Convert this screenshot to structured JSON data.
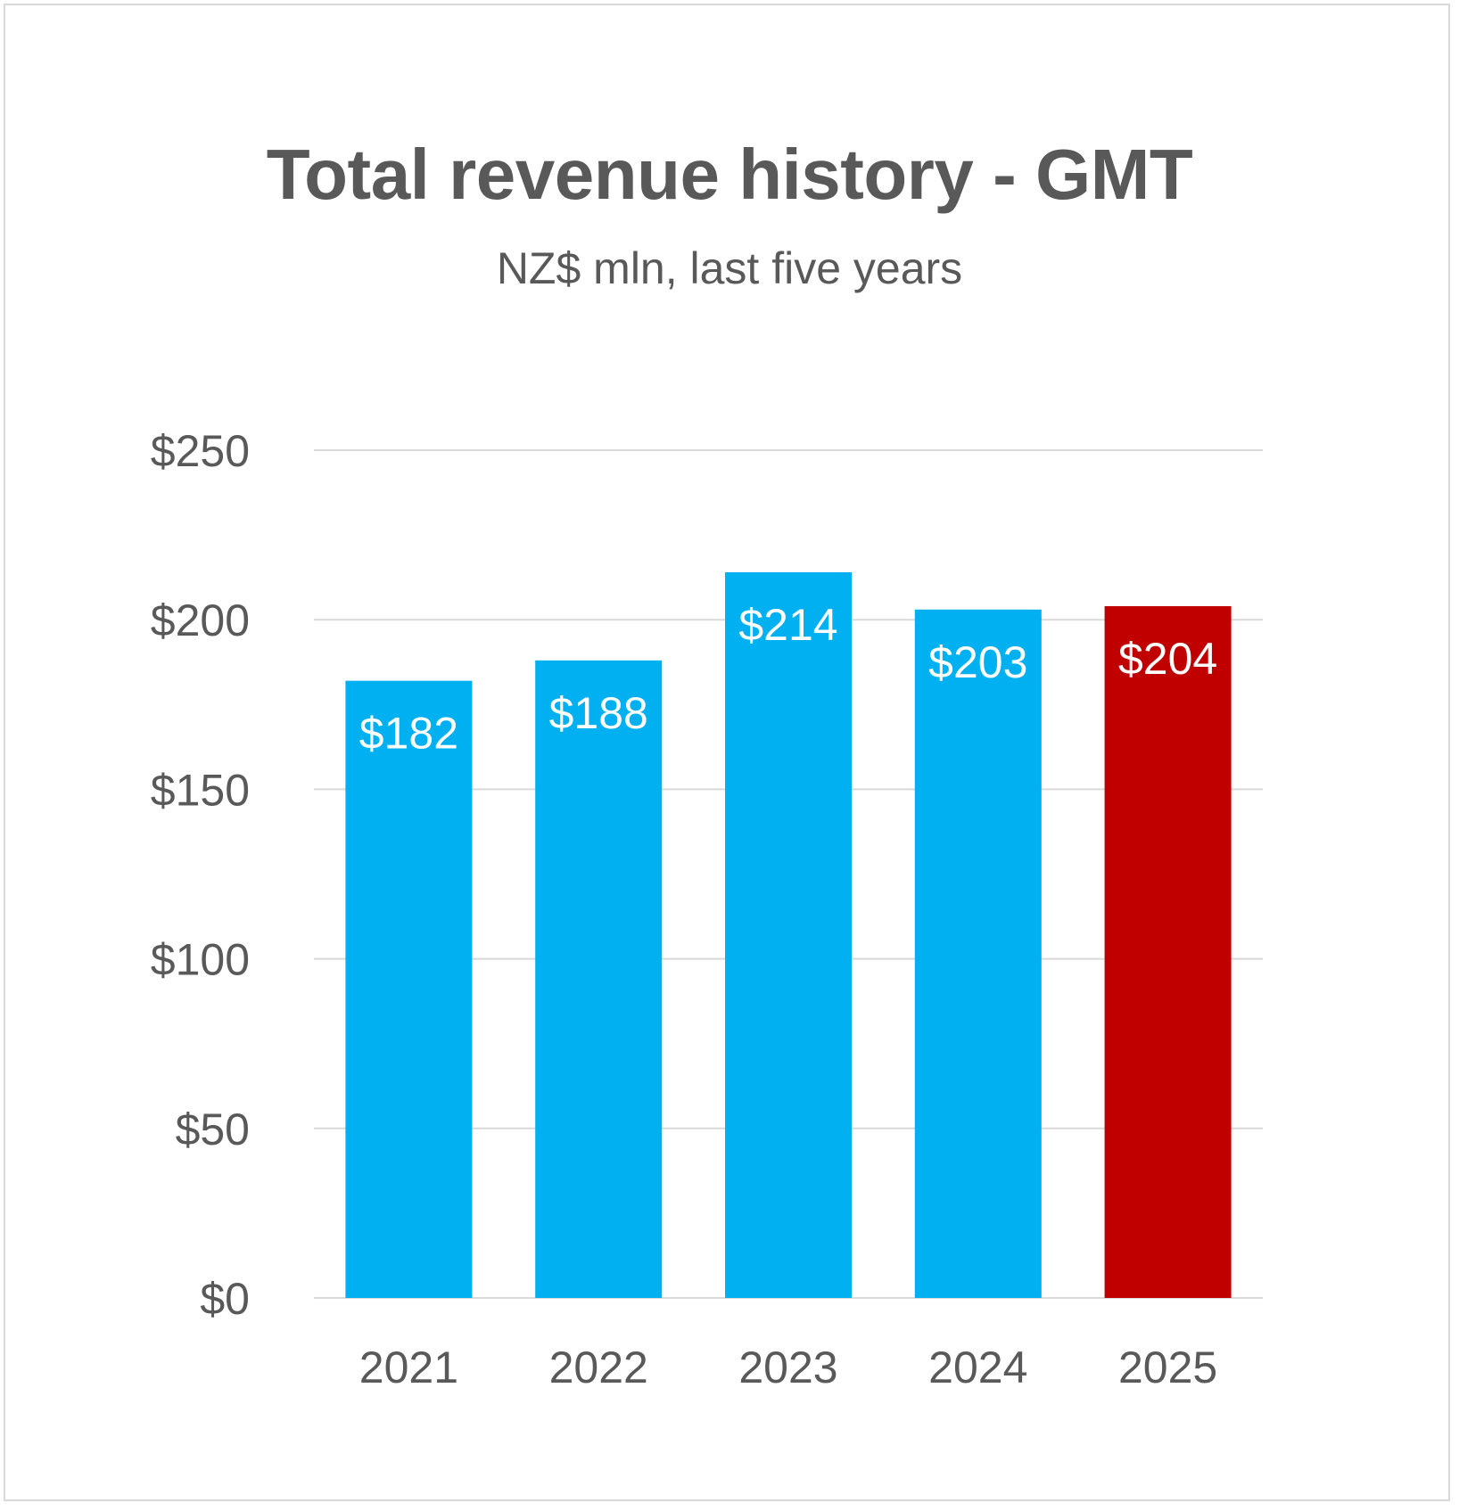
{
  "chart_data": {
    "type": "bar",
    "title": "Total revenue history - GMT",
    "subtitle": "NZ$ mln, last five years",
    "xlabel": "",
    "ylabel": "",
    "categories": [
      "2021",
      "2022",
      "2023",
      "2024",
      "2025"
    ],
    "values": [
      182,
      188,
      214,
      203,
      204
    ],
    "data_labels": [
      "$182",
      "$188",
      "$214",
      "$203",
      "$204"
    ],
    "ylim": [
      0,
      250
    ],
    "yticks": [
      0,
      50,
      100,
      150,
      200,
      250
    ],
    "ytick_labels": [
      "$0",
      "$50",
      "$100",
      "$150",
      "$200",
      "$250"
    ],
    "grid": true,
    "legend": "none",
    "bar_colors": [
      "#00b0f0",
      "#00b0f0",
      "#00b0f0",
      "#00b0f0",
      "#c00000"
    ],
    "gridline_color": "#d9d9d9",
    "text_color": "#595959"
  }
}
